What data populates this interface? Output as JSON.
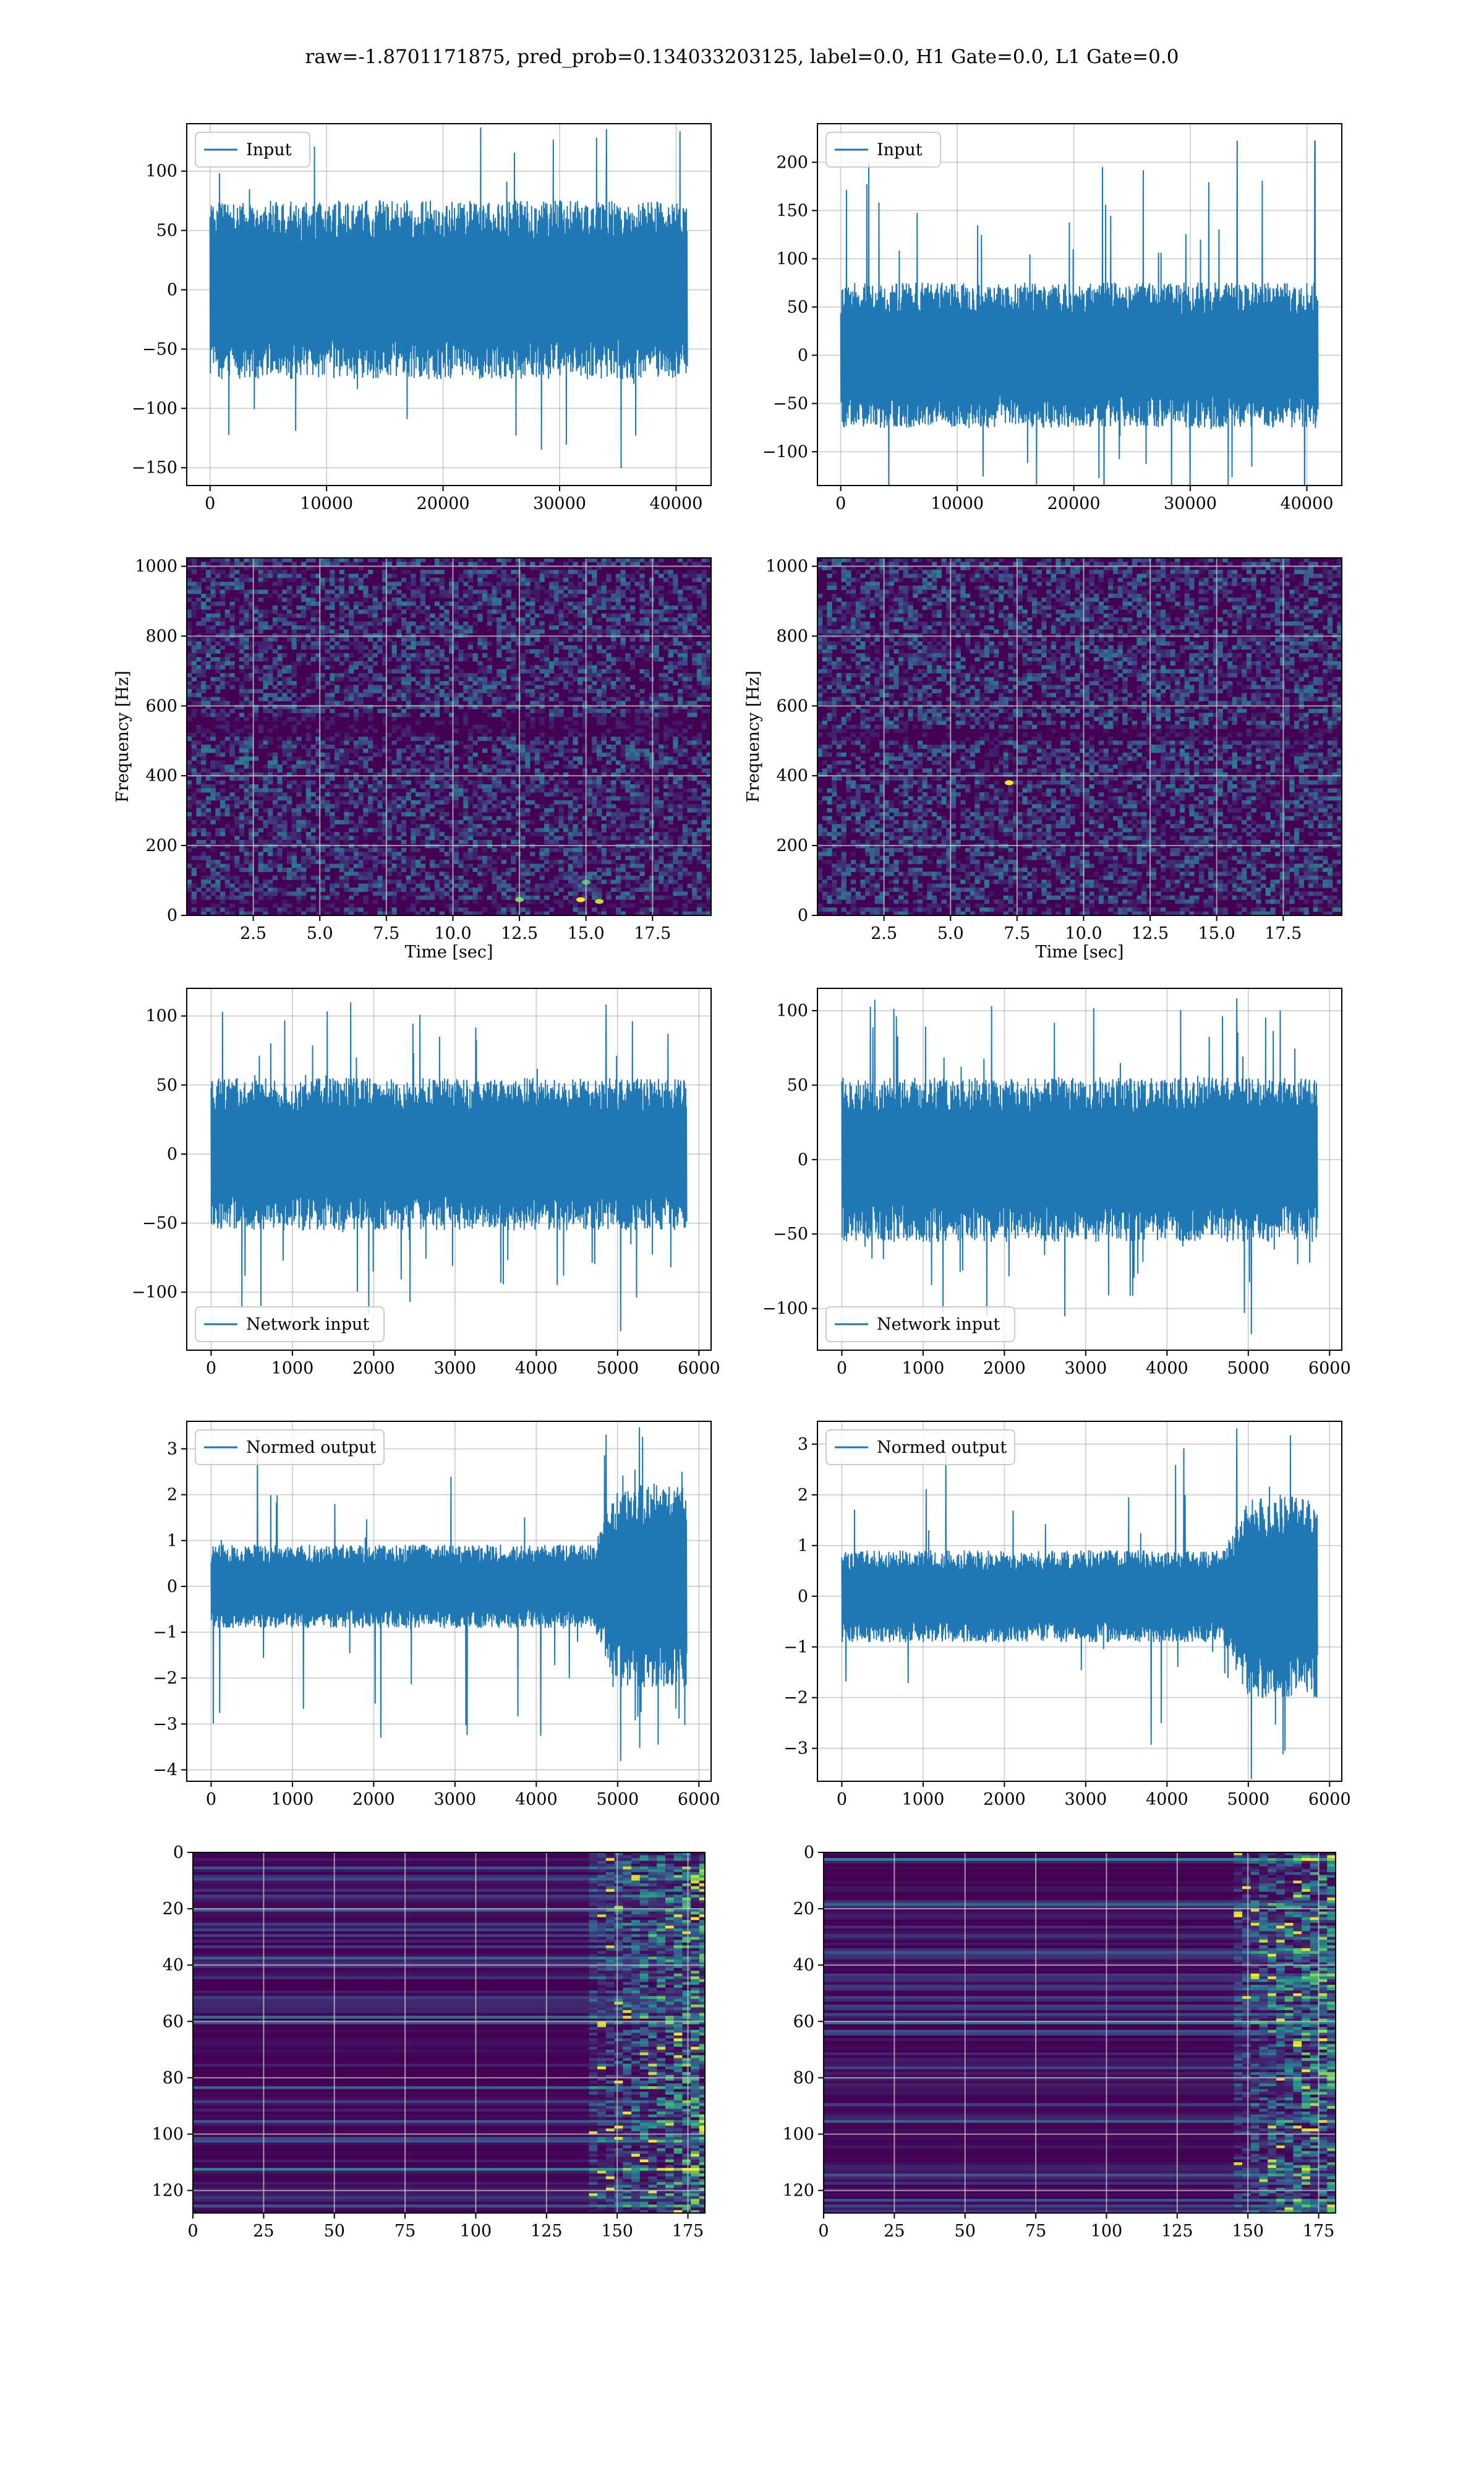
{
  "suptitle": "raw=-1.8701171875, pred_prob=0.134033203125, label=0.0, H1 Gate=0.0, L1 Gate=0.0",
  "colors": {
    "line": "#1f77b4",
    "grid": "#b0b0b0",
    "axes": "#000000",
    "viridis_low": "#440154",
    "viridis_mid_a": "#3b528b",
    "viridis_mid_b": "#21918c",
    "viridis_high_a": "#5ec962",
    "viridis_high_b": "#fde725"
  },
  "chart_data": [
    {
      "id": "input-h1",
      "type": "line",
      "grid": true,
      "legend_placement": "upper-left",
      "series": [
        {
          "name": "Input",
          "envelope": {
            "x_start": 0,
            "x_end": 40960,
            "typical_low": -75,
            "typical_high": 75,
            "min": -150,
            "max": 135
          }
        }
      ],
      "xlim": [
        -2000,
        43000
      ],
      "ylim": [
        -165,
        140
      ],
      "xticks": [
        0,
        10000,
        20000,
        30000,
        40000
      ],
      "yticks": [
        -150,
        -100,
        -50,
        0,
        50,
        100
      ],
      "xlabel": "",
      "ylabel": ""
    },
    {
      "id": "input-l1",
      "type": "line",
      "grid": true,
      "legend_placement": "upper-left",
      "series": [
        {
          "name": "Input",
          "envelope": {
            "x_start": 0,
            "x_end": 40960,
            "typical_low": -75,
            "typical_high": 75,
            "min": -115,
            "max": 222,
            "spike_x": 40700
          }
        }
      ],
      "xlim": [
        -2000,
        43000
      ],
      "ylim": [
        -135,
        240
      ],
      "xticks": [
        0,
        10000,
        20000,
        30000,
        40000
      ],
      "yticks": [
        -100,
        -50,
        0,
        50,
        100,
        150,
        200
      ],
      "xlabel": "",
      "ylabel": ""
    },
    {
      "id": "spectrogram-h1",
      "type": "heatmap",
      "colormap": "viridis",
      "grid": true,
      "xlim": [
        0,
        19.7
      ],
      "ylim": [
        0,
        1024
      ],
      "xticks": [
        2.5,
        5.0,
        7.5,
        10.0,
        12.5,
        15.0,
        17.5
      ],
      "xtick_labels": [
        "2.5",
        "5.0",
        "7.5",
        "10.0",
        "12.5",
        "15.0",
        "17.5"
      ],
      "yticks": [
        0,
        200,
        400,
        600,
        800,
        1000
      ],
      "xlabel": "Time [sec]",
      "ylabel": "Frequency [Hz]",
      "dark_bands_hz": [
        [
          460,
          510
        ],
        [
          980,
          1000
        ],
        [
          20,
          30
        ]
      ],
      "hot_spots": [
        {
          "t": 12.5,
          "f": 45,
          "v": 0.8
        },
        {
          "t": 14.8,
          "f": 45,
          "v": 1.0
        },
        {
          "t": 15.5,
          "f": 40,
          "v": 0.9
        },
        {
          "t": 15.0,
          "f": 95,
          "v": 0.7
        }
      ]
    },
    {
      "id": "spectrogram-l1",
      "type": "heatmap",
      "colormap": "viridis",
      "grid": true,
      "xlim": [
        0,
        19.7
      ],
      "ylim": [
        0,
        1024
      ],
      "xticks": [
        2.5,
        5.0,
        7.5,
        10.0,
        12.5,
        15.0,
        17.5
      ],
      "xtick_labels": [
        "2.5",
        "5.0",
        "7.5",
        "10.0",
        "12.5",
        "15.0",
        "17.5"
      ],
      "yticks": [
        0,
        200,
        400,
        600,
        800,
        1000
      ],
      "xlabel": "Time [sec]",
      "ylabel": "Frequency [Hz]",
      "dark_bands_hz": [
        [
          490,
          520
        ],
        [
          985,
          1000
        ]
      ],
      "hot_spots": [
        {
          "t": 7.2,
          "f": 380,
          "v": 1.0
        }
      ]
    },
    {
      "id": "network-input-h1",
      "type": "line",
      "grid": true,
      "legend_placement": "lower-left",
      "series": [
        {
          "name": "Network input",
          "envelope": {
            "x_start": 0,
            "x_end": 5850,
            "typical_low": -55,
            "typical_high": 55,
            "min": -128,
            "max": 108
          }
        }
      ],
      "xlim": [
        -300,
        6150
      ],
      "ylim": [
        -142,
        120
      ],
      "xticks": [
        0,
        1000,
        2000,
        3000,
        4000,
        5000,
        6000
      ],
      "yticks": [
        -100,
        -50,
        0,
        50,
        100
      ],
      "xlabel": "",
      "ylabel": ""
    },
    {
      "id": "network-input-l1",
      "type": "line",
      "grid": true,
      "legend_placement": "lower-left",
      "series": [
        {
          "name": "Network input",
          "envelope": {
            "x_start": 0,
            "x_end": 5850,
            "typical_low": -55,
            "typical_high": 55,
            "min": -117,
            "max": 108
          }
        }
      ],
      "xlim": [
        -300,
        6150
      ],
      "ylim": [
        -128,
        115
      ],
      "xticks": [
        0,
        1000,
        2000,
        3000,
        4000,
        5000,
        6000
      ],
      "yticks": [
        -100,
        -50,
        0,
        50,
        100
      ],
      "xlabel": "",
      "ylabel": ""
    },
    {
      "id": "normed-output-h1",
      "type": "line",
      "grid": true,
      "legend_placement": "upper-left",
      "series": [
        {
          "name": "Normed output",
          "envelope": {
            "x_start": 0,
            "x_end": 5850,
            "typical_low": -0.9,
            "typical_high": 0.9,
            "burst_start": 4700,
            "burst_low": -2.2,
            "burst_high": 2.2,
            "min": -3.8,
            "max": 3.3
          }
        }
      ],
      "xlim": [
        -300,
        6150
      ],
      "ylim": [
        -4.25,
        3.6
      ],
      "xticks": [
        0,
        1000,
        2000,
        3000,
        4000,
        5000,
        6000
      ],
      "yticks": [
        -4,
        -3,
        -2,
        -1,
        0,
        1,
        2,
        3
      ],
      "xlabel": "",
      "ylabel": ""
    },
    {
      "id": "normed-output-l1",
      "type": "line",
      "grid": true,
      "legend_placement": "upper-left",
      "series": [
        {
          "name": "Normed output",
          "envelope": {
            "x_start": 0,
            "x_end": 5850,
            "typical_low": -0.9,
            "typical_high": 0.9,
            "burst_start": 4700,
            "burst_low": -2.0,
            "burst_high": 2.0,
            "min": -3.6,
            "max": 3.3
          }
        }
      ],
      "xlim": [
        -300,
        6150
      ],
      "ylim": [
        -3.65,
        3.45
      ],
      "xticks": [
        0,
        1000,
        2000,
        3000,
        4000,
        5000,
        6000
      ],
      "yticks": [
        -3,
        -2,
        -1,
        0,
        1,
        2,
        3
      ],
      "xlabel": "",
      "ylabel": ""
    },
    {
      "id": "feature-map-h1",
      "type": "heatmap",
      "colormap": "viridis",
      "grid": true,
      "y_inverted": true,
      "xlim": [
        0,
        181
      ],
      "ylim": [
        0,
        128
      ],
      "xticks": [
        0,
        25,
        50,
        75,
        100,
        125,
        150,
        175
      ],
      "yticks": [
        0,
        20,
        40,
        60,
        80,
        100,
        120
      ],
      "xlabel": "",
      "ylabel": "",
      "activity_onset_col": 140,
      "bright_rows": [
        5,
        20,
        37,
        58,
        60,
        83,
        95,
        102,
        112,
        125
      ]
    },
    {
      "id": "feature-map-l1",
      "type": "heatmap",
      "colormap": "viridis",
      "grid": true,
      "y_inverted": true,
      "xlim": [
        0,
        181
      ],
      "ylim": [
        0,
        128
      ],
      "xticks": [
        0,
        25,
        50,
        75,
        100,
        125,
        150,
        175
      ],
      "yticks": [
        0,
        20,
        40,
        60,
        80,
        100,
        120
      ],
      "xlabel": "",
      "ylabel": "",
      "activity_onset_col": 145,
      "bright_rows": [
        2,
        18,
        35,
        60,
        63,
        95,
        114,
        123
      ]
    }
  ]
}
